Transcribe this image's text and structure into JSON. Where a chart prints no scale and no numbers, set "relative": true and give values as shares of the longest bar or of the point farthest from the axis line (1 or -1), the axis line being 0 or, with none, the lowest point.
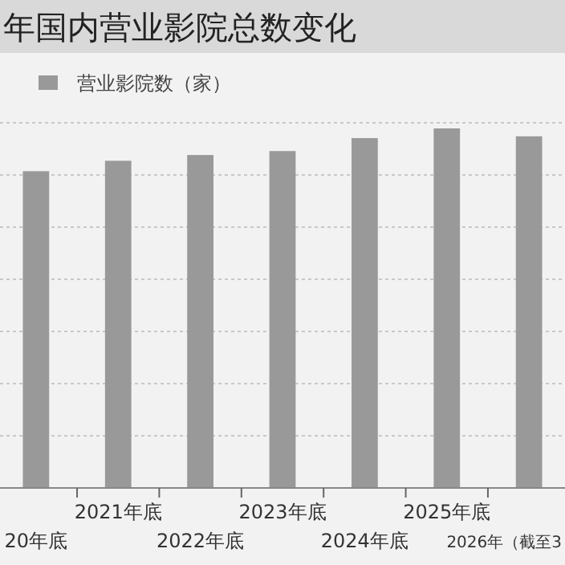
{
  "chart_data": {
    "type": "bar",
    "title": "年国内营业影院总数变化",
    "relative": true,
    "categories": [
      "20年底",
      "2021年底",
      "2022年底",
      "2023年底",
      "2024年底",
      "2025年底",
      "2026年（截至3"
    ],
    "series": [
      {
        "name": "营业影院数（家）",
        "color": "#999999",
        "values": [
          0.881,
          0.91,
          0.926,
          0.937,
          0.973,
          1,
          0.978
        ]
      }
    ],
    "grid": "y",
    "legend": "top left"
  }
}
